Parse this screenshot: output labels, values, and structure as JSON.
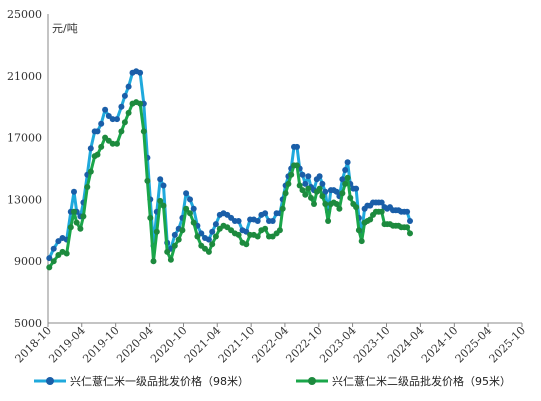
{
  "chart_data": {
    "type": "line",
    "title": "",
    "xlabel": "",
    "ylabel": "",
    "unit": "元/吨",
    "ylim": [
      5000,
      25000
    ],
    "yticks": [
      5000,
      9000,
      13000,
      17000,
      21000,
      25000
    ],
    "xlim": [
      "2018-10",
      "2025-10"
    ],
    "xticks": [
      "2018-10",
      "2019-04",
      "2019-10",
      "2020-04",
      "2020-10",
      "2021-04",
      "2021-10",
      "2022-04",
      "2022-10",
      "2023-04",
      "2023-10",
      "2024-04",
      "2024-10",
      "2025-04",
      "2025-10"
    ],
    "grid": false,
    "legend_position": "bottom",
    "series": [
      {
        "name": "兴仁薏仁米一级品批发价格（98米）",
        "color": "#1fa9dc",
        "marker_color": "#1a5ea8",
        "points": [
          [
            "2018-10-08",
            9200
          ],
          [
            "2018-11-01",
            9800
          ],
          [
            "2018-11-26",
            10300
          ],
          [
            "2018-12-18",
            10500
          ],
          [
            "2019-01-10",
            10400
          ],
          [
            "2019-02-01",
            12200
          ],
          [
            "2019-02-18",
            13500
          ],
          [
            "2019-03-05",
            12200
          ],
          [
            "2019-03-25",
            11900
          ],
          [
            "2019-04-10",
            12800
          ],
          [
            "2019-05-01",
            14600
          ],
          [
            "2019-05-20",
            16300
          ],
          [
            "2019-06-10",
            17400
          ],
          [
            "2019-06-25",
            17400
          ],
          [
            "2019-07-15",
            17900
          ],
          [
            "2019-08-05",
            18800
          ],
          [
            "2019-08-25",
            18400
          ],
          [
            "2019-09-15",
            18200
          ],
          [
            "2019-10-08",
            18200
          ],
          [
            "2019-11-01",
            19000
          ],
          [
            "2019-11-20",
            19700
          ],
          [
            "2019-12-10",
            20300
          ],
          [
            "2019-12-31",
            21200
          ],
          [
            "2020-01-20",
            21300
          ],
          [
            "2020-02-10",
            21200
          ],
          [
            "2020-03-01",
            19200
          ],
          [
            "2020-03-20",
            15700
          ],
          [
            "2020-04-05",
            13000
          ],
          [
            "2020-04-22",
            10000
          ],
          [
            "2020-05-10",
            12200
          ],
          [
            "2020-05-28",
            14300
          ],
          [
            "2020-06-15",
            13900
          ],
          [
            "2020-07-05",
            10200
          ],
          [
            "2020-07-25",
            9800
          ],
          [
            "2020-08-15",
            10700
          ],
          [
            "2020-09-05",
            11100
          ],
          [
            "2020-09-25",
            11800
          ],
          [
            "2020-10-15",
            13400
          ],
          [
            "2020-11-05",
            13000
          ],
          [
            "2020-11-25",
            12400
          ],
          [
            "2020-12-15",
            11300
          ],
          [
            "2021-01-05",
            10800
          ],
          [
            "2021-01-25",
            10500
          ],
          [
            "2021-02-15",
            10400
          ],
          [
            "2021-03-05",
            10900
          ],
          [
            "2021-03-25",
            11400
          ],
          [
            "2021-04-15",
            12000
          ],
          [
            "2021-05-05",
            12100
          ],
          [
            "2021-05-25",
            12000
          ],
          [
            "2021-06-15",
            11800
          ],
          [
            "2021-07-05",
            11600
          ],
          [
            "2021-07-25",
            11600
          ],
          [
            "2021-08-15",
            11000
          ],
          [
            "2021-09-05",
            10900
          ],
          [
            "2021-09-25",
            11700
          ],
          [
            "2021-10-15",
            11700
          ],
          [
            "2021-11-05",
            11600
          ],
          [
            "2021-11-25",
            12000
          ],
          [
            "2021-12-15",
            12100
          ],
          [
            "2022-01-05",
            11600
          ],
          [
            "2022-01-25",
            11600
          ],
          [
            "2022-02-15",
            12100
          ],
          [
            "2022-03-05",
            12100
          ],
          [
            "2022-03-20",
            13000
          ],
          [
            "2022-04-05",
            13900
          ],
          [
            "2022-04-20",
            14500
          ],
          [
            "2022-05-05",
            15000
          ],
          [
            "2022-05-20",
            16400
          ],
          [
            "2022-06-05",
            16400
          ],
          [
            "2022-06-20",
            15000
          ],
          [
            "2022-07-05",
            14600
          ],
          [
            "2022-07-20",
            14000
          ],
          [
            "2022-08-05",
            14500
          ],
          [
            "2022-08-20",
            13800
          ],
          [
            "2022-09-05",
            13600
          ],
          [
            "2022-09-20",
            14300
          ],
          [
            "2022-10-05",
            14500
          ],
          [
            "2022-10-20",
            14000
          ],
          [
            "2022-11-05",
            13500
          ],
          [
            "2022-11-20",
            12200
          ],
          [
            "2022-12-05",
            13600
          ],
          [
            "2022-12-20",
            13600
          ],
          [
            "2023-01-05",
            13500
          ],
          [
            "2023-01-20",
            13200
          ],
          [
            "2023-02-05",
            14300
          ],
          [
            "2023-02-20",
            14900
          ],
          [
            "2023-03-05",
            15400
          ],
          [
            "2023-03-20",
            14000
          ],
          [
            "2023-04-05",
            13700
          ],
          [
            "2023-04-20",
            13700
          ],
          [
            "2023-05-05",
            11800
          ],
          [
            "2023-05-20",
            10900
          ],
          [
            "2023-06-05",
            12400
          ],
          [
            "2023-06-20",
            12600
          ],
          [
            "2023-07-05",
            12600
          ],
          [
            "2023-07-20",
            12800
          ],
          [
            "2023-08-05",
            12800
          ],
          [
            "2023-08-20",
            12800
          ],
          [
            "2023-09-05",
            12800
          ],
          [
            "2023-09-20",
            12500
          ],
          [
            "2023-10-05",
            12400
          ],
          [
            "2023-10-20",
            12500
          ],
          [
            "2023-11-05",
            12300
          ],
          [
            "2023-11-20",
            12300
          ],
          [
            "2023-12-05",
            12300
          ],
          [
            "2023-12-20",
            12200
          ],
          [
            "2024-01-05",
            12200
          ],
          [
            "2024-01-20",
            12200
          ],
          [
            "2024-02-05",
            11600
          ]
        ]
      },
      {
        "name": "兴仁薏仁米二级品批发价格（95米）",
        "color": "#1aa64a",
        "marker_color": "#1d8a3e",
        "points": [
          [
            "2018-10-08",
            8600
          ],
          [
            "2018-11-01",
            9000
          ],
          [
            "2018-11-26",
            9400
          ],
          [
            "2018-12-18",
            9600
          ],
          [
            "2019-01-10",
            9500
          ],
          [
            "2019-02-01",
            11200
          ],
          [
            "2019-02-18",
            12200
          ],
          [
            "2019-03-05",
            11500
          ],
          [
            "2019-03-25",
            11100
          ],
          [
            "2019-04-10",
            11900
          ],
          [
            "2019-05-01",
            13800
          ],
          [
            "2019-05-20",
            14800
          ],
          [
            "2019-06-10",
            15800
          ],
          [
            "2019-06-25",
            15900
          ],
          [
            "2019-07-15",
            16400
          ],
          [
            "2019-08-05",
            17000
          ],
          [
            "2019-08-25",
            16800
          ],
          [
            "2019-09-15",
            16600
          ],
          [
            "2019-10-08",
            16600
          ],
          [
            "2019-11-01",
            17400
          ],
          [
            "2019-11-20",
            18000
          ],
          [
            "2019-12-10",
            18600
          ],
          [
            "2019-12-31",
            19200
          ],
          [
            "2020-01-20",
            19300
          ],
          [
            "2020-02-10",
            19200
          ],
          [
            "2020-03-01",
            17400
          ],
          [
            "2020-03-20",
            14200
          ],
          [
            "2020-04-05",
            11800
          ],
          [
            "2020-04-22",
            9000
          ],
          [
            "2020-05-10",
            10900
          ],
          [
            "2020-05-28",
            12900
          ],
          [
            "2020-06-15",
            12600
          ],
          [
            "2020-07-05",
            9600
          ],
          [
            "2020-07-25",
            9100
          ],
          [
            "2020-08-15",
            10000
          ],
          [
            "2020-09-05",
            10400
          ],
          [
            "2020-09-25",
            11000
          ],
          [
            "2020-10-15",
            12400
          ],
          [
            "2020-11-05",
            12100
          ],
          [
            "2020-11-25",
            11500
          ],
          [
            "2020-12-15",
            10600
          ],
          [
            "2021-01-05",
            10000
          ],
          [
            "2021-01-25",
            9800
          ],
          [
            "2021-02-15",
            9600
          ],
          [
            "2021-03-05",
            10100
          ],
          [
            "2021-03-25",
            10600
          ],
          [
            "2021-04-15",
            11100
          ],
          [
            "2021-05-05",
            11300
          ],
          [
            "2021-05-25",
            11200
          ],
          [
            "2021-06-15",
            11000
          ],
          [
            "2021-07-05",
            10800
          ],
          [
            "2021-07-25",
            10700
          ],
          [
            "2021-08-15",
            10200
          ],
          [
            "2021-09-05",
            10100
          ],
          [
            "2021-09-25",
            10700
          ],
          [
            "2021-10-15",
            10700
          ],
          [
            "2021-11-05",
            10600
          ],
          [
            "2021-11-25",
            11000
          ],
          [
            "2021-12-15",
            11100
          ],
          [
            "2022-01-05",
            10600
          ],
          [
            "2022-01-25",
            10600
          ],
          [
            "2022-02-15",
            10800
          ],
          [
            "2022-03-05",
            11000
          ],
          [
            "2022-03-20",
            12400
          ],
          [
            "2022-04-05",
            13400
          ],
          [
            "2022-04-20",
            14000
          ],
          [
            "2022-05-05",
            14600
          ],
          [
            "2022-05-20",
            15200
          ],
          [
            "2022-06-05",
            15200
          ],
          [
            "2022-06-20",
            13900
          ],
          [
            "2022-07-05",
            13600
          ],
          [
            "2022-07-20",
            13300
          ],
          [
            "2022-08-05",
            13700
          ],
          [
            "2022-08-20",
            13100
          ],
          [
            "2022-09-05",
            12700
          ],
          [
            "2022-09-20",
            13500
          ],
          [
            "2022-10-05",
            13700
          ],
          [
            "2022-10-20",
            13200
          ],
          [
            "2022-11-05",
            12700
          ],
          [
            "2022-11-20",
            11600
          ],
          [
            "2022-12-05",
            12700
          ],
          [
            "2022-12-20",
            12800
          ],
          [
            "2023-01-05",
            12700
          ],
          [
            "2023-01-20",
            12400
          ],
          [
            "2023-02-05",
            13400
          ],
          [
            "2023-02-20",
            14000
          ],
          [
            "2023-03-05",
            14400
          ],
          [
            "2023-03-20",
            13100
          ],
          [
            "2023-04-05",
            12700
          ],
          [
            "2023-04-20",
            12500
          ],
          [
            "2023-05-05",
            11000
          ],
          [
            "2023-05-20",
            10300
          ],
          [
            "2023-06-05",
            11500
          ],
          [
            "2023-06-20",
            11600
          ],
          [
            "2023-07-05",
            11700
          ],
          [
            "2023-07-20",
            12000
          ],
          [
            "2023-08-05",
            12200
          ],
          [
            "2023-08-20",
            12200
          ],
          [
            "2023-09-05",
            12200
          ],
          [
            "2023-09-20",
            11400
          ],
          [
            "2023-10-05",
            11400
          ],
          [
            "2023-10-20",
            11400
          ],
          [
            "2023-11-05",
            11300
          ],
          [
            "2023-11-20",
            11300
          ],
          [
            "2023-12-05",
            11300
          ],
          [
            "2023-12-20",
            11200
          ],
          [
            "2024-01-05",
            11200
          ],
          [
            "2024-01-20",
            11200
          ],
          [
            "2024-02-05",
            10800
          ]
        ]
      }
    ]
  }
}
